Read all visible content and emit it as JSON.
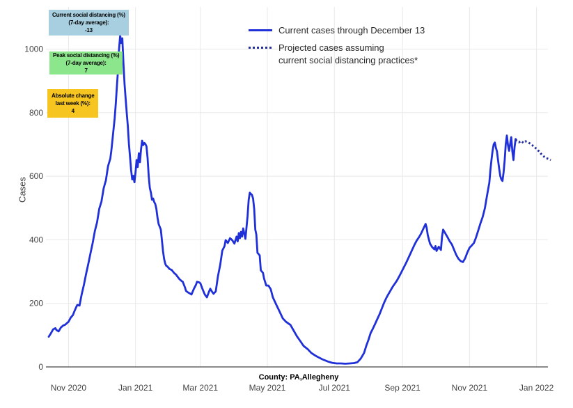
{
  "county_label": "County: PA,Allegheny",
  "annotations": [
    {
      "lines": [
        "Current social distancing (%)",
        "(7-day average):",
        "-13"
      ],
      "bg": "#a7cfe0"
    },
    {
      "lines": [
        "Peak social distancing (%)",
        "(7-day average):",
        "7"
      ],
      "bg": "#8ce68c"
    },
    {
      "lines": [
        "Absolute change",
        "last week (%):",
        "4"
      ],
      "bg": "#f6c51f"
    }
  ],
  "legend": {
    "items": [
      {
        "label_lines": [
          "Current cases through December 13"
        ],
        "style": "solid"
      },
      {
        "label_lines": [
          "Projected cases assuming",
          "current social distancing practices*"
        ],
        "style": "dotted"
      }
    ]
  },
  "chart_data": {
    "type": "line",
    "title": "",
    "xlabel": "",
    "ylabel": "Cases",
    "grid": true,
    "legend_position": "top",
    "x_epoch": "2020-10-14 (day 0 of series points)",
    "ylim": [
      0,
      1133
    ],
    "colors": {
      "grid": "#e8e8e8",
      "axis": "#444444",
      "tick_text": "#444444"
    },
    "x_ticks": [
      {
        "label": "Nov 2020",
        "day": 18
      },
      {
        "label": "Jan 2021",
        "day": 79
      },
      {
        "label": "Mar 2021",
        "day": 138
      },
      {
        "label": "May 2021",
        "day": 199
      },
      {
        "label": "Jul 2021",
        "day": 260
      },
      {
        "label": "Sep 2021",
        "day": 322
      },
      {
        "label": "Nov 2021",
        "day": 383
      },
      {
        "label": "Jan 2022",
        "day": 444
      }
    ],
    "y_ticks": [
      {
        "label": "0",
        "value": 0
      },
      {
        "label": "200",
        "value": 200
      },
      {
        "label": "400",
        "value": 400
      },
      {
        "label": "600",
        "value": 600
      },
      {
        "label": "800",
        "value": 800
      },
      {
        "label": "1000",
        "value": 1000
      }
    ],
    "series": [
      {
        "name": "Current cases through December 13",
        "style": "solid",
        "color": "#2030d8",
        "width": 2.8,
        "points": [
          [
            0,
            95
          ],
          [
            2,
            106
          ],
          [
            4,
            118
          ],
          [
            6,
            122
          ],
          [
            7,
            116
          ],
          [
            9,
            112
          ],
          [
            11,
            124
          ],
          [
            13,
            130
          ],
          [
            15,
            133
          ],
          [
            17,
            139
          ],
          [
            18,
            142
          ],
          [
            20,
            155
          ],
          [
            22,
            163
          ],
          [
            23,
            172
          ],
          [
            25,
            188
          ],
          [
            26,
            195
          ],
          [
            28,
            193
          ],
          [
            30,
            228
          ],
          [
            32,
            258
          ],
          [
            34,
            292
          ],
          [
            36,
            324
          ],
          [
            38,
            358
          ],
          [
            40,
            390
          ],
          [
            42,
            428
          ],
          [
            44,
            455
          ],
          [
            46,
            498
          ],
          [
            48,
            520
          ],
          [
            50,
            562
          ],
          [
            52,
            587
          ],
          [
            54,
            632
          ],
          [
            56,
            655
          ],
          [
            57,
            680
          ],
          [
            58,
            714
          ],
          [
            59,
            748
          ],
          [
            60,
            782
          ],
          [
            61,
            828
          ],
          [
            62,
            880
          ],
          [
            63,
            930
          ],
          [
            64,
            1000
          ],
          [
            65,
            1043
          ],
          [
            66,
            1019
          ],
          [
            67,
            1034
          ],
          [
            68,
            955
          ],
          [
            69,
            890
          ],
          [
            70,
            843
          ],
          [
            71,
            800
          ],
          [
            72,
            758
          ],
          [
            73,
            701
          ],
          [
            74,
            660
          ],
          [
            75,
            620
          ],
          [
            76,
            590
          ],
          [
            77,
            601
          ],
          [
            78,
            581
          ],
          [
            79,
            613
          ],
          [
            80,
            651
          ],
          [
            81,
            629
          ],
          [
            82,
            672
          ],
          [
            83,
            644
          ],
          [
            84,
            683
          ],
          [
            85,
            712
          ],
          [
            86,
            698
          ],
          [
            87,
            705
          ],
          [
            88,
            701
          ],
          [
            89,
            694
          ],
          [
            90,
            657
          ],
          [
            91,
            600
          ],
          [
            92,
            563
          ],
          [
            93,
            548
          ],
          [
            94,
            526
          ],
          [
            95,
            530
          ],
          [
            96,
            519
          ],
          [
            97,
            512
          ],
          [
            98,
            497
          ],
          [
            99,
            470
          ],
          [
            100,
            450
          ],
          [
            102,
            432
          ],
          [
            103,
            400
          ],
          [
            104,
            365
          ],
          [
            105,
            340
          ],
          [
            106,
            325
          ],
          [
            107,
            318
          ],
          [
            108,
            316
          ],
          [
            110,
            308
          ],
          [
            112,
            305
          ],
          [
            114,
            296
          ],
          [
            116,
            290
          ],
          [
            117,
            285
          ],
          [
            119,
            276
          ],
          [
            121,
            270
          ],
          [
            122,
            268
          ],
          [
            124,
            250
          ],
          [
            125,
            239
          ],
          [
            127,
            234
          ],
          [
            129,
            230
          ],
          [
            130,
            228
          ],
          [
            132,
            245
          ],
          [
            134,
            258
          ],
          [
            135,
            268
          ],
          [
            137,
            266
          ],
          [
            138,
            263
          ],
          [
            140,
            245
          ],
          [
            142,
            228
          ],
          [
            144,
            219
          ],
          [
            146,
            238
          ],
          [
            147,
            246
          ],
          [
            148,
            240
          ],
          [
            150,
            230
          ],
          [
            152,
            238
          ],
          [
            154,
            285
          ],
          [
            156,
            320
          ],
          [
            158,
            366
          ],
          [
            160,
            380
          ],
          [
            161,
            399
          ],
          [
            163,
            390
          ],
          [
            165,
            405
          ],
          [
            167,
            399
          ],
          [
            169,
            388
          ],
          [
            171,
            410
          ],
          [
            172,
            395
          ],
          [
            173,
            421
          ],
          [
            174,
            405
          ],
          [
            175,
            425
          ],
          [
            176,
            410
          ],
          [
            177,
            436
          ],
          [
            179,
            403
          ],
          [
            181,
            475
          ],
          [
            182,
            526
          ],
          [
            183,
            548
          ],
          [
            185,
            541
          ],
          [
            186,
            530
          ],
          [
            187,
            497
          ],
          [
            188,
            432
          ],
          [
            189,
            416
          ],
          [
            190,
            359
          ],
          [
            192,
            351
          ],
          [
            193,
            304
          ],
          [
            195,
            296
          ],
          [
            196,
            278
          ],
          [
            198,
            256
          ],
          [
            200,
            256
          ],
          [
            202,
            245
          ],
          [
            204,
            219
          ],
          [
            207,
            197
          ],
          [
            210,
            175
          ],
          [
            213,
            153
          ],
          [
            216,
            142
          ],
          [
            220,
            132
          ],
          [
            223,
            114
          ],
          [
            226,
            96
          ],
          [
            229,
            81
          ],
          [
            232,
            66
          ],
          [
            236,
            55
          ],
          [
            239,
            44
          ],
          [
            242,
            37
          ],
          [
            245,
            31
          ],
          [
            249,
            24
          ],
          [
            254,
            17
          ],
          [
            258,
            13
          ],
          [
            262,
            11
          ],
          [
            266,
            11
          ],
          [
            270,
            10
          ],
          [
            274,
            11
          ],
          [
            278,
            12
          ],
          [
            281,
            15
          ],
          [
            284,
            26
          ],
          [
            287,
            44
          ],
          [
            289,
            66
          ],
          [
            291,
            85
          ],
          [
            293,
            107
          ],
          [
            295,
            120
          ],
          [
            297,
            135
          ],
          [
            299,
            150
          ],
          [
            301,
            165
          ],
          [
            303,
            182
          ],
          [
            305,
            200
          ],
          [
            307,
            215
          ],
          [
            309,
            228
          ],
          [
            311,
            240
          ],
          [
            313,
            252
          ],
          [
            315,
            262
          ],
          [
            317,
            272
          ],
          [
            319,
            285
          ],
          [
            321,
            298
          ],
          [
            323,
            312
          ],
          [
            325,
            325
          ],
          [
            327,
            340
          ],
          [
            329,
            355
          ],
          [
            331,
            370
          ],
          [
            333,
            385
          ],
          [
            335,
            398
          ],
          [
            337,
            408
          ],
          [
            339,
            420
          ],
          [
            341,
            435
          ],
          [
            343,
            450
          ],
          [
            344,
            438
          ],
          [
            345,
            415
          ],
          [
            347,
            388
          ],
          [
            349,
            377
          ],
          [
            351,
            370
          ],
          [
            352,
            380
          ],
          [
            353,
            365
          ],
          [
            355,
            378
          ],
          [
            357,
            368
          ],
          [
            358,
            410
          ],
          [
            359,
            432
          ],
          [
            361,
            420
          ],
          [
            363,
            408
          ],
          [
            365,
            395
          ],
          [
            367,
            385
          ],
          [
            369,
            368
          ],
          [
            371,
            352
          ],
          [
            373,
            340
          ],
          [
            375,
            333
          ],
          [
            377,
            330
          ],
          [
            379,
            342
          ],
          [
            381,
            360
          ],
          [
            383,
            375
          ],
          [
            385,
            382
          ],
          [
            387,
            390
          ],
          [
            389,
            408
          ],
          [
            391,
            430
          ],
          [
            393,
            452
          ],
          [
            395,
            472
          ],
          [
            397,
            500
          ],
          [
            398,
            520
          ],
          [
            400,
            560
          ],
          [
            401,
            579
          ],
          [
            402,
            620
          ],
          [
            403,
            651
          ],
          [
            404,
            680
          ],
          [
            405,
            700
          ],
          [
            406,
            706
          ],
          [
            407,
            690
          ],
          [
            408,
            678
          ],
          [
            409,
            650
          ],
          [
            410,
            623
          ],
          [
            411,
            600
          ],
          [
            412,
            590
          ],
          [
            413,
            585
          ],
          [
            414,
            612
          ],
          [
            415,
            651
          ],
          [
            416,
            700
          ],
          [
            417,
            728
          ],
          [
            418,
            698
          ],
          [
            419,
            680
          ],
          [
            420,
            702
          ],
          [
            421,
            723
          ],
          [
            422,
            678
          ],
          [
            423,
            651
          ],
          [
            424,
            692
          ],
          [
            425,
            717
          ]
        ]
      },
      {
        "name": "Projected cases assuming current social distancing practices*",
        "style": "dotted",
        "color": "#222e9c",
        "width": 3,
        "dash": "2.5 3.2",
        "points": [
          [
            425,
            715
          ],
          [
            426,
            712
          ],
          [
            428,
            707
          ],
          [
            430,
            711
          ],
          [
            432,
            705
          ],
          [
            434,
            710
          ],
          [
            436,
            707
          ],
          [
            438,
            703
          ],
          [
            440,
            698
          ],
          [
            442,
            692
          ],
          [
            444,
            686
          ],
          [
            446,
            679
          ],
          [
            448,
            671
          ],
          [
            450,
            664
          ],
          [
            452,
            658
          ],
          [
            455,
            654
          ],
          [
            457,
            651
          ]
        ]
      }
    ]
  }
}
